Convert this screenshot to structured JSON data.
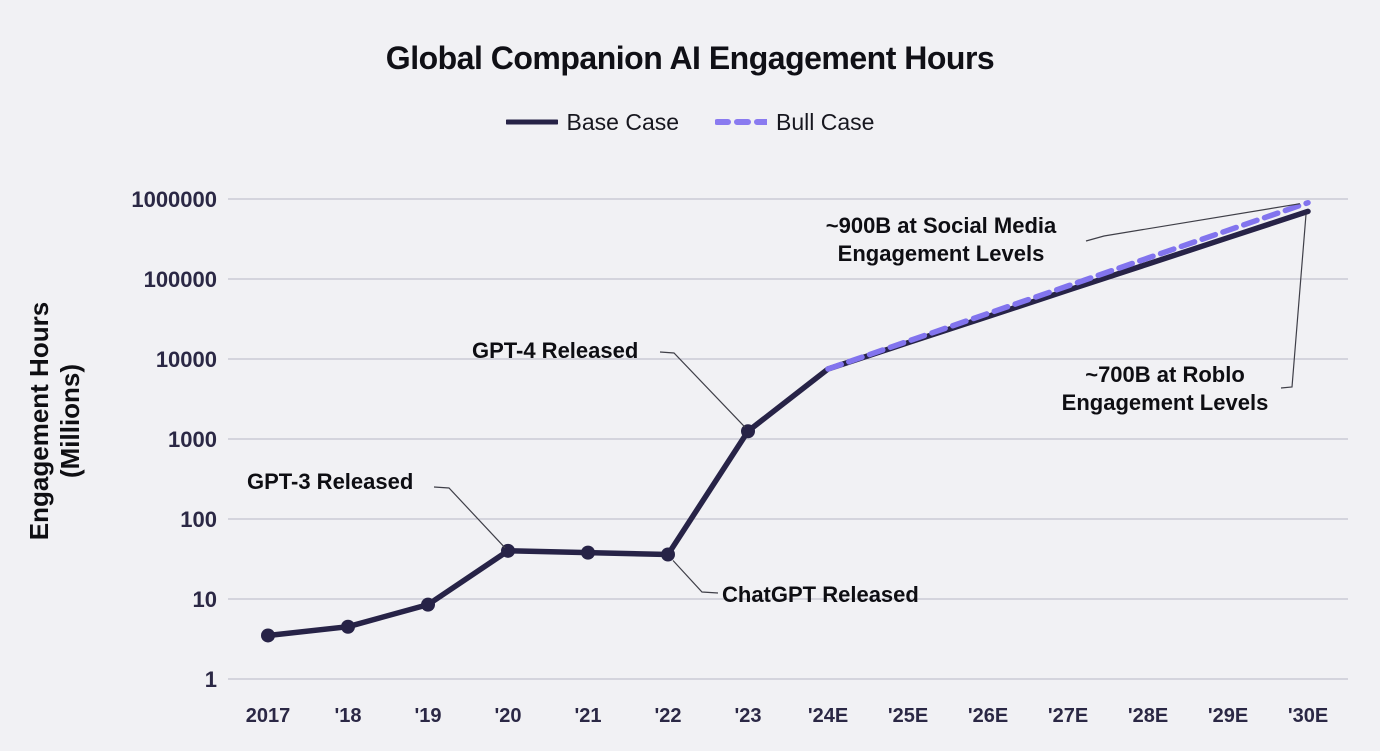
{
  "title": "Global Companion AI Engagement Hours",
  "legend": {
    "items": [
      {
        "label": "Base Case",
        "style": "solid",
        "color": "#272347"
      },
      {
        "label": "Bull Case",
        "style": "dashed",
        "color": "#8274ee"
      }
    ]
  },
  "y_axis_label": {
    "line1": "Engagement Hours",
    "line2": "(Millions)"
  },
  "colors": {
    "background": "#f1f1f4",
    "gridline": "#b8b8c6",
    "base_line": "#272347",
    "bull_line": "#8274ee",
    "tick_text": "#2b2845",
    "annotation_text": "#0e0e13",
    "leader_line": "#3f3f48"
  },
  "chart_data": {
    "type": "line",
    "title": "Global Companion AI Engagement Hours",
    "ylabel": "Engagement Hours (Millions)",
    "y_scale": "log",
    "ylim": [
      1,
      1000000
    ],
    "grid": "horizontal",
    "legend_position": "top",
    "y_ticks": [
      "1",
      "10",
      "100",
      "1000",
      "10000",
      "100000",
      "1000000"
    ],
    "x_years": [
      2017,
      2018,
      2019,
      2020,
      2021,
      2022,
      2023,
      2024,
      2025,
      2026,
      2027,
      2028,
      2029,
      2030
    ],
    "x_tick_labels": [
      "2017",
      "'18",
      "'19",
      "'20",
      "'21",
      "'22",
      "'23",
      "'24E",
      "'25E",
      "'26E",
      "'27E",
      "'28E",
      "'29E",
      "'30E"
    ],
    "series": [
      {
        "name": "Base Case",
        "style": "solid",
        "color": "#272347",
        "markers": {
          "through_year": 2023
        },
        "x": [
          2017,
          2018,
          2019,
          2020,
          2021,
          2022,
          2023,
          2024,
          2025,
          2026,
          2027,
          2028,
          2029,
          2030
        ],
        "values": [
          3.5,
          4.5,
          8.5,
          40,
          38,
          36,
          1250,
          7500,
          16000,
          34000,
          72400,
          154000,
          328000,
          700000
        ]
      },
      {
        "name": "Bull Case",
        "style": "dashed",
        "color": "#8274ee",
        "markers": null,
        "x": [
          2024,
          2025,
          2026,
          2027,
          2028,
          2029,
          2030
        ],
        "values": [
          7500,
          16700,
          37000,
          82000,
          183000,
          406000,
          900000
        ]
      }
    ],
    "annotations": [
      {
        "id": "gpt-3-released",
        "lines": [
          "GPT-3 Released"
        ],
        "target_year": 2020,
        "target_value": 40
      },
      {
        "id": "gpt-4-released",
        "lines": [
          "GPT-4 Released"
        ],
        "target_year": 2023,
        "target_value": 1250
      },
      {
        "id": "chatgpt-released",
        "lines": [
          "ChatGPT Released"
        ],
        "target_year": 2022,
        "target_value": 36
      },
      {
        "id": "bull-endpoint",
        "lines": [
          "~900B at Social Media",
          "Engagement Levels"
        ],
        "target_year": 2030,
        "target_series": "Bull Case",
        "target_value": 900000
      },
      {
        "id": "base-endpoint",
        "lines": [
          "~700B at Roblo",
          "Engagement Levels"
        ],
        "target_year": 2030,
        "target_series": "Base Case",
        "target_value": 700000
      }
    ]
  }
}
